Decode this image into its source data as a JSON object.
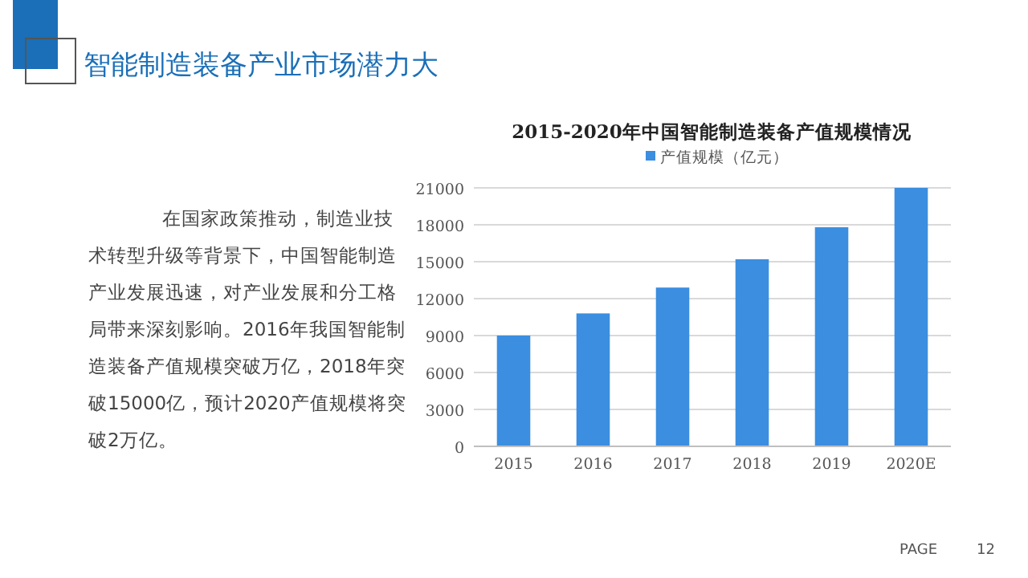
{
  "chart_data": {
    "type": "bar",
    "title": "2015-2020年中国智能制造装备产值规模情况",
    "categories": [
      "2015",
      "2016",
      "2017",
      "2018",
      "2019",
      "2020E"
    ],
    "series": [
      {
        "name": "产值规模（亿元）",
        "color": "#3b8ee0",
        "values": [
          9000,
          10800,
          12900,
          15200,
          17800,
          21000
        ]
      }
    ],
    "ylim": [
      0,
      21000
    ],
    "yticks": [
      0,
      3000,
      6000,
      9000,
      12000,
      15000,
      18000,
      21000
    ],
    "grid": "y",
    "legend": "top",
    "annotations": [
      "智能制造装备产业市场潜力大",
      "在国家政策推动，制造业技术转型升级等背景下，中国智能制造产业发展迅速，对产业发展和分工格局带来深刻影响。2016年我国智能制造装备产值规模突破万亿，2018年突破15000亿，预计2020产值规模将突破2万亿。",
      "PAGE",
      "12"
    ]
  }
}
